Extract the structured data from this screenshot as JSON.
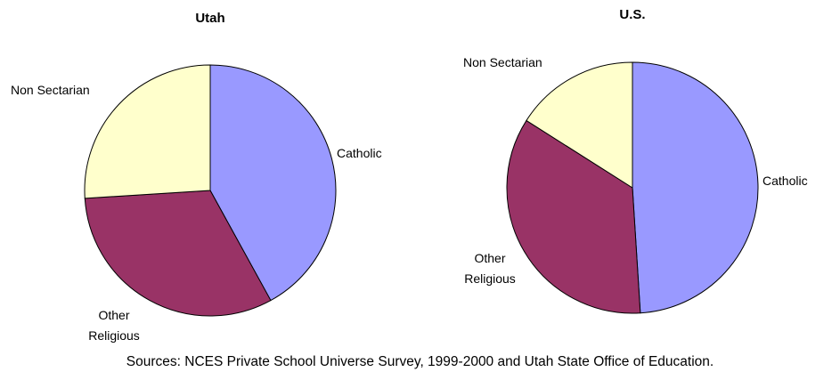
{
  "chart_data": [
    {
      "type": "pie",
      "title": "Utah",
      "categories": [
        "Catholic",
        "Other Religious",
        "Non Sectarian"
      ],
      "values": [
        42,
        32,
        26
      ],
      "colors": [
        "#9999ff",
        "#993366",
        "#ffffcc"
      ]
    },
    {
      "type": "pie",
      "title": "U.S.",
      "categories": [
        "Catholic",
        "Other Religious",
        "Non Sectarian"
      ],
      "values": [
        49,
        35,
        16
      ],
      "colors": [
        "#9999ff",
        "#993366",
        "#ffffcc"
      ]
    }
  ],
  "source": "Sources: NCES Private School Universe Survey, 1999-2000 and Utah State Office of Education."
}
